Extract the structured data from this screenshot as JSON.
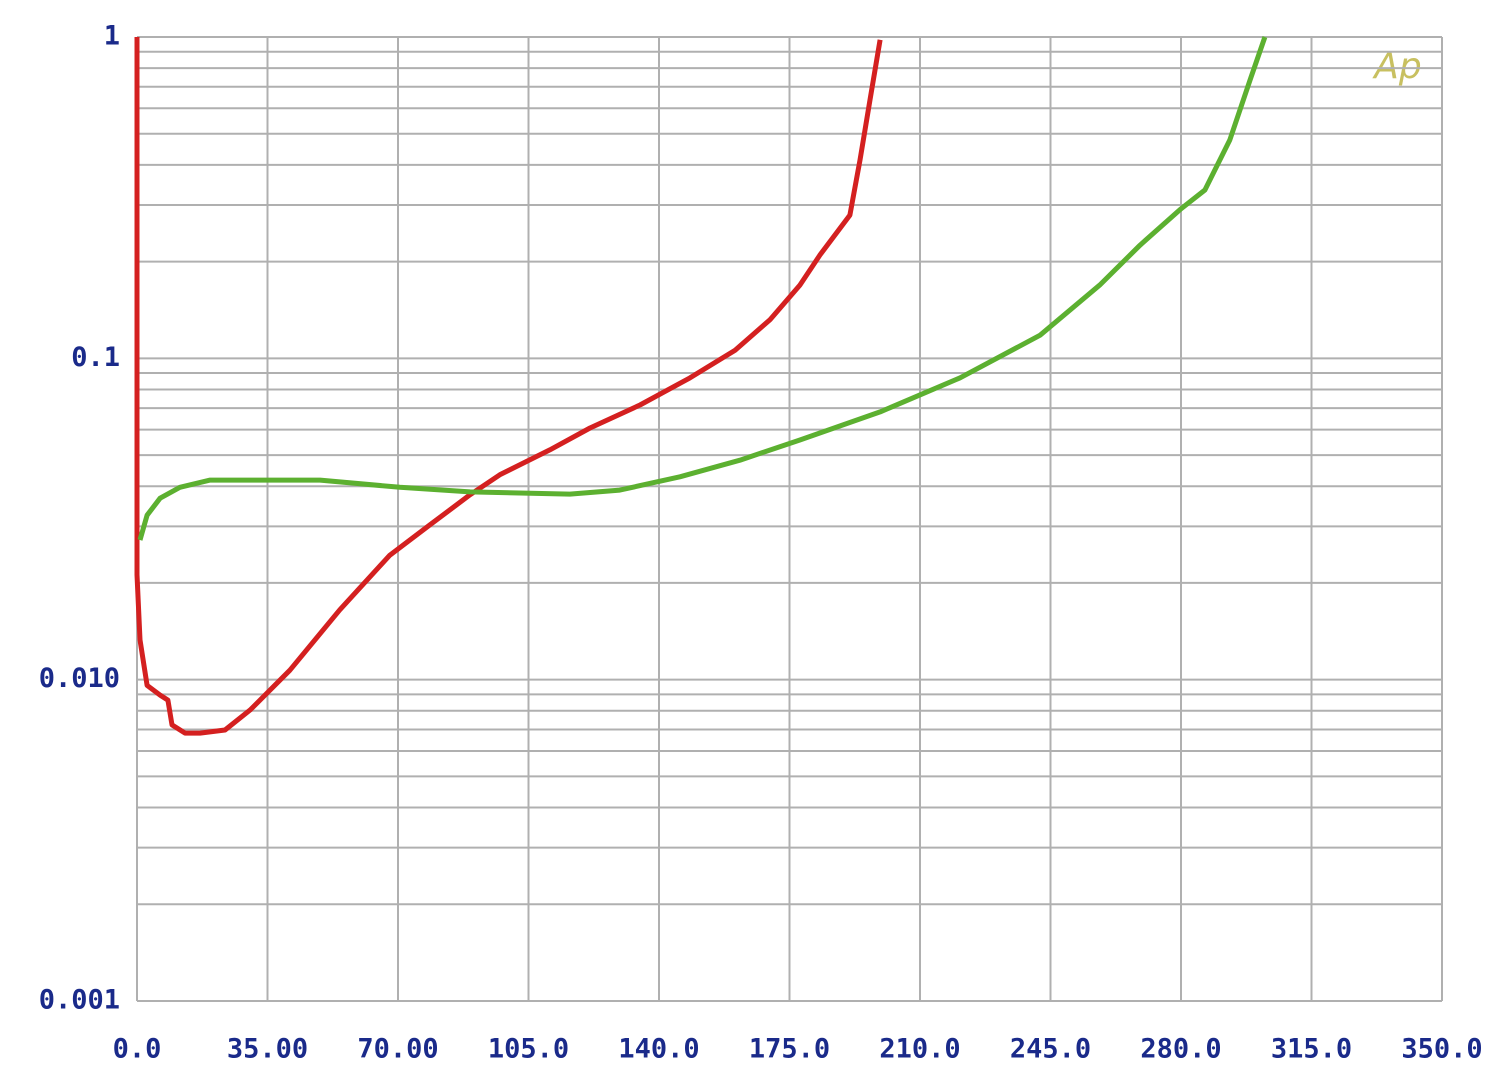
{
  "chart_data": {
    "type": "line",
    "logo": "Ap",
    "log_y": true,
    "grid": true,
    "xlim": [
      0,
      350
    ],
    "ylim": [
      0.001,
      1
    ],
    "xticks": [
      {
        "value": 0,
        "label": "0.0"
      },
      {
        "value": 35,
        "label": "35.00"
      },
      {
        "value": 70,
        "label": "70.00"
      },
      {
        "value": 105,
        "label": "105.0"
      },
      {
        "value": 140,
        "label": "140.0"
      },
      {
        "value": 175,
        "label": "175.0"
      },
      {
        "value": 210,
        "label": "210.0"
      },
      {
        "value": 245,
        "label": "245.0"
      },
      {
        "value": 280,
        "label": "280.0"
      },
      {
        "value": 315,
        "label": "315.0"
      },
      {
        "value": 350,
        "label": "350.0"
      }
    ],
    "yticks": [
      1,
      0.1,
      {
        "value": 0.01,
        "label": "0.010"
      },
      0.001
    ],
    "yminor_ticks": [
      0.002,
      0.003,
      0.004,
      0.005,
      0.006,
      0.007,
      0.008,
      0.009,
      0.02,
      0.03,
      0.04,
      0.05,
      0.06,
      0.07,
      0.08,
      0.09,
      0.2,
      0.3,
      0.4,
      0.5,
      0.6,
      0.7,
      0.8,
      0.9
    ],
    "series": [
      {
        "color": "#d42020",
        "x": [
          0,
          0,
          0.8,
          2.7,
          6.2,
          8.3,
          9.4,
          12.9,
          16.9,
          23.6,
          30.3,
          41.0,
          54.4,
          67.8,
          78.5,
          89.3,
          97.3,
          110.7,
          121.5,
          134.9,
          148.3,
          160.4,
          169.8,
          177.8,
          183.2,
          191.2,
          193.9,
          196.6,
          199.3
        ],
        "values": [
          1,
          0.0212,
          0.0133,
          0.0096,
          0.00895,
          0.00864,
          0.00723,
          0.00682,
          0.00682,
          0.00697,
          0.00804,
          0.0107,
          0.0165,
          0.0244,
          0.0303,
          0.0376,
          0.0434,
          0.0519,
          0.0607,
          0.0716,
          0.0869,
          0.106,
          0.132,
          0.169,
          0.21,
          0.279,
          0.414,
          0.637,
          0.98
        ]
      },
      {
        "color": "#5cb030",
        "x": [
          0.8,
          2.7,
          6.2,
          11.5,
          19.6,
          33.0,
          49.1,
          70.5,
          89.3,
          116.1,
          129.5,
          145.6,
          161.7,
          177.8,
          199.3,
          220.7,
          242.2,
          258.2,
          269.0,
          279.7,
          286.4,
          293.1,
          298.5,
          302.5
        ],
        "values": [
          0.0272,
          0.0325,
          0.0367,
          0.0397,
          0.0418,
          0.0418,
          0.0418,
          0.0397,
          0.0384,
          0.0378,
          0.0389,
          0.0428,
          0.0482,
          0.0557,
          0.0681,
          0.0869,
          0.118,
          0.169,
          0.225,
          0.29,
          0.334,
          0.478,
          0.734,
          1.0
        ]
      }
    ]
  }
}
